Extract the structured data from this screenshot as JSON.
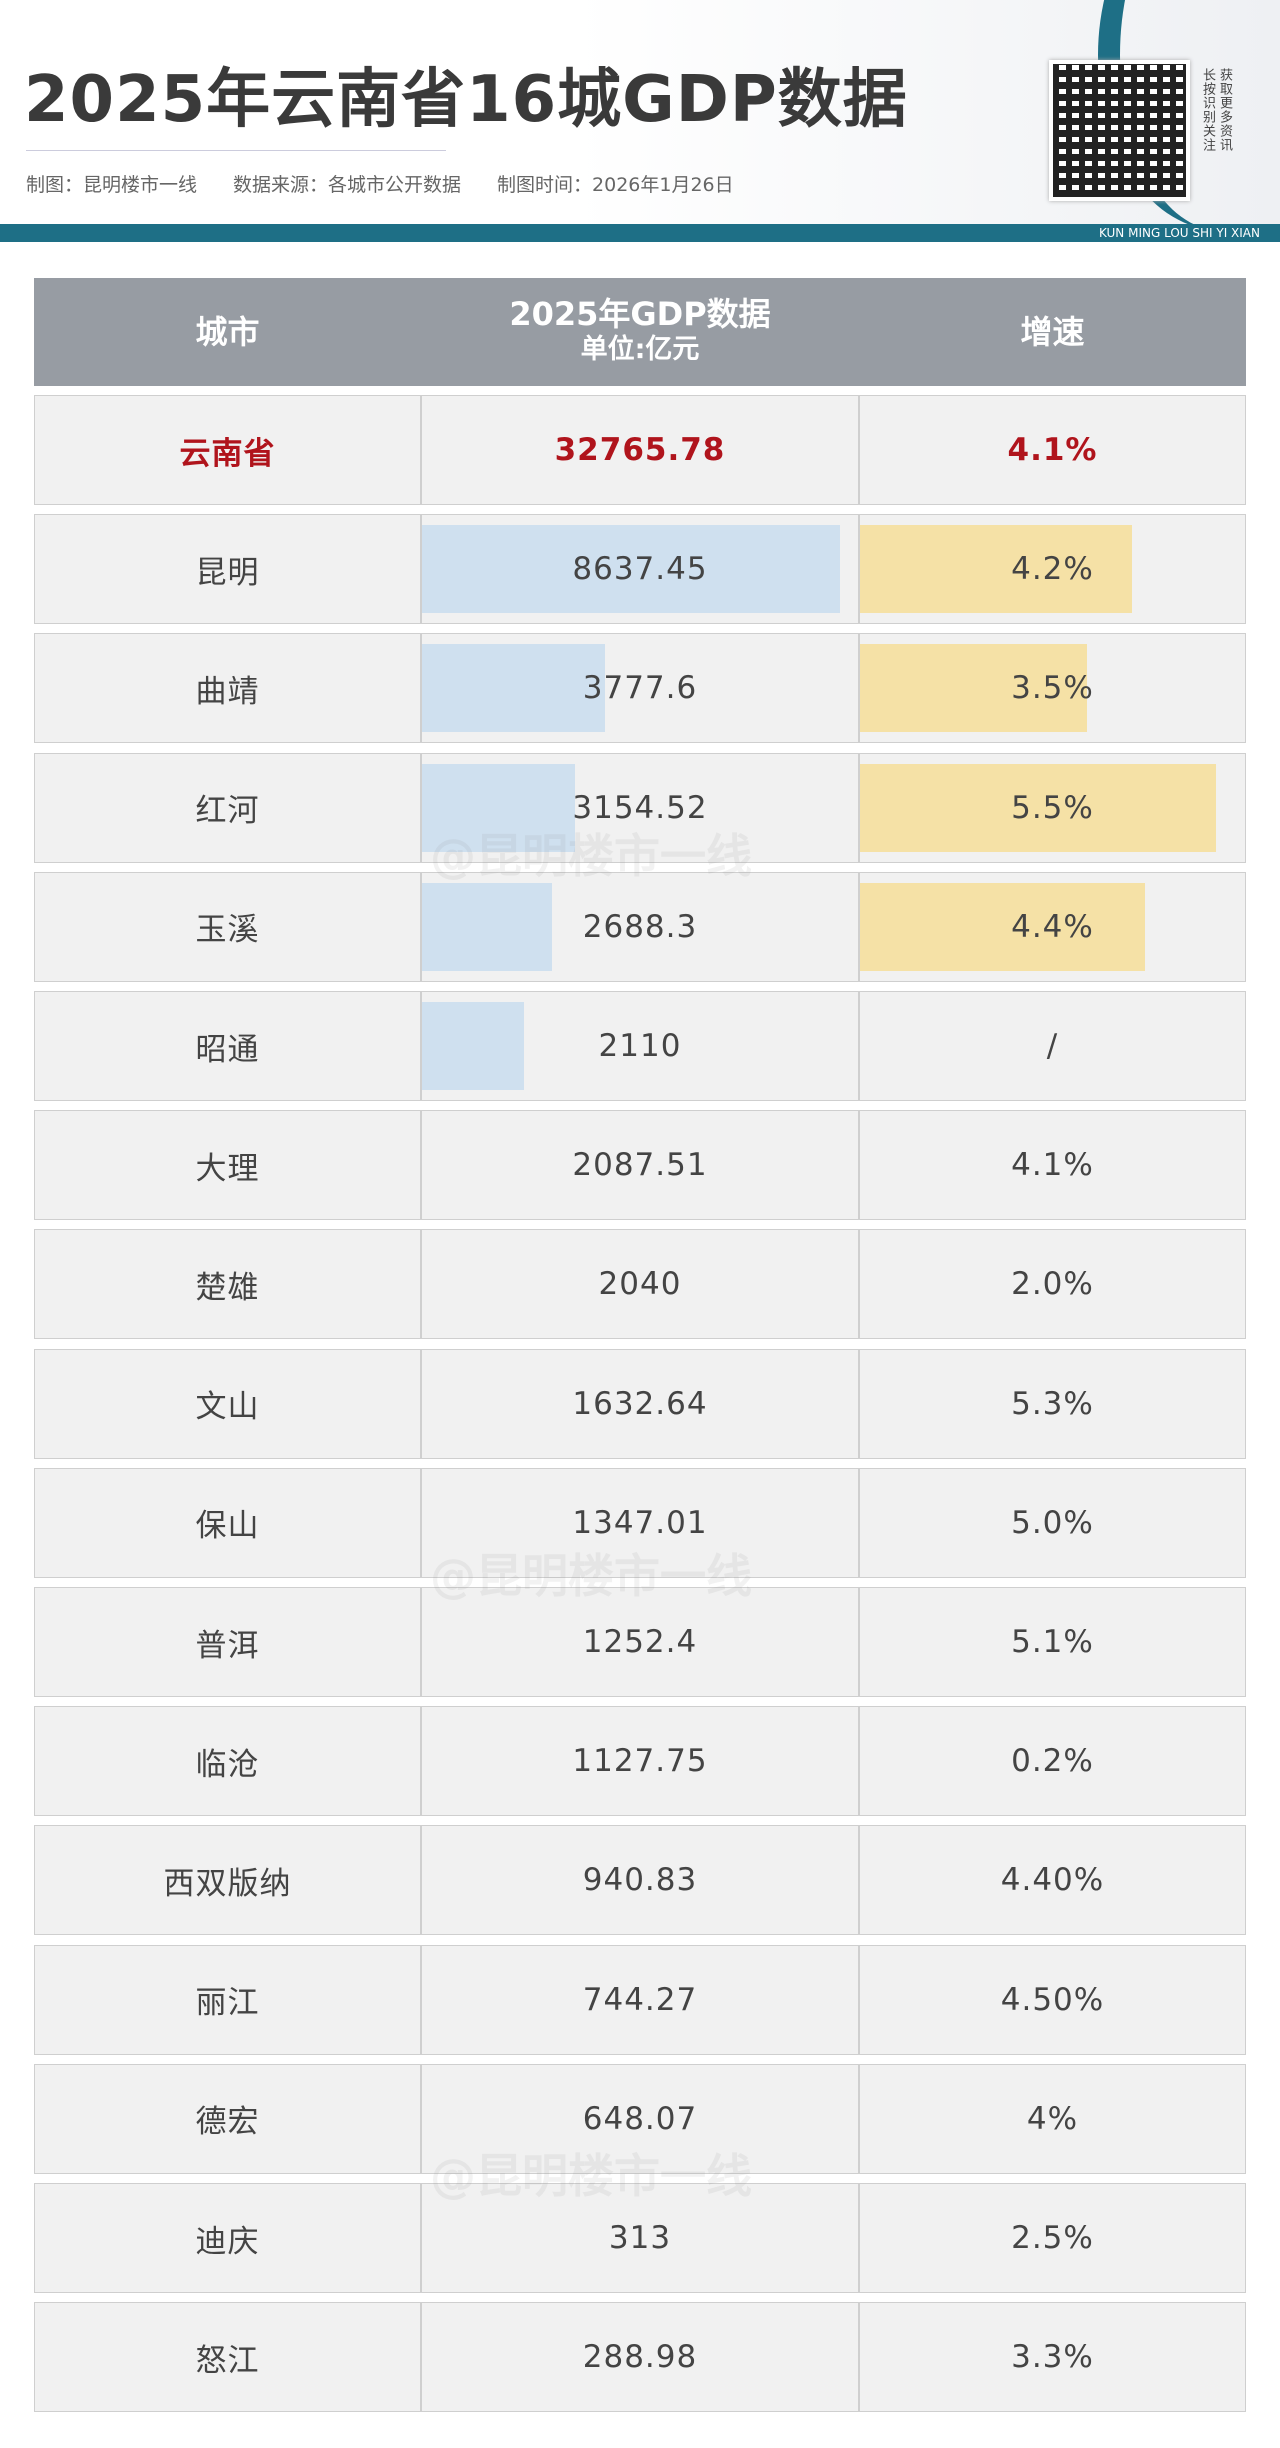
{
  "header": {
    "title": "2025年云南省16城GDP数据",
    "credits": [
      "制图：昆明楼市一线",
      "数据来源：各城市公开数据",
      "制图时间：2026年1月26日"
    ],
    "band_text": "KUN MING LOU SHI YI XIAN",
    "qr_note": [
      "长按识别关注",
      "获取更多资讯"
    ]
  },
  "table": {
    "columns": [
      "城市",
      "2025年GDP数据",
      "增速"
    ],
    "unit": "单位:亿元",
    "rows": [
      [
        "云南省",
        "32765.78",
        "4.1%"
      ],
      [
        "昆明",
        "8637.45",
        "4.2%"
      ],
      [
        "曲靖",
        "3777.6",
        "3.5%"
      ],
      [
        "红河",
        "3154.52",
        "5.5%"
      ],
      [
        "玉溪",
        "2688.3",
        "4.4%"
      ],
      [
        "昭通",
        "2110",
        "/"
      ],
      [
        "大理",
        "2087.51",
        "4.1%"
      ],
      [
        "楚雄",
        "2040",
        "2.0%"
      ],
      [
        "文山",
        "1632.64",
        "5.3%"
      ],
      [
        "保山",
        "1347.01",
        "5.0%"
      ],
      [
        "普洱",
        "1252.4",
        "5.1%"
      ],
      [
        "临沧",
        "1127.75",
        "0.2%"
      ],
      [
        "西双版纳",
        "940.83",
        "4.40%"
      ],
      [
        "丽江",
        "744.27",
        "4.50%"
      ],
      [
        "德宏",
        "648.07",
        "4%"
      ],
      [
        "迪庆",
        "313",
        "2.5%"
      ],
      [
        "怒江",
        "288.98",
        "3.3%"
      ]
    ],
    "highlight_row": 0,
    "gdp_bar_rows": [
      1,
      2,
      3,
      4,
      5
    ],
    "growth_bar_rows": [
      1,
      2,
      3,
      4
    ]
  },
  "watermark": "@昆明楼市一线"
}
